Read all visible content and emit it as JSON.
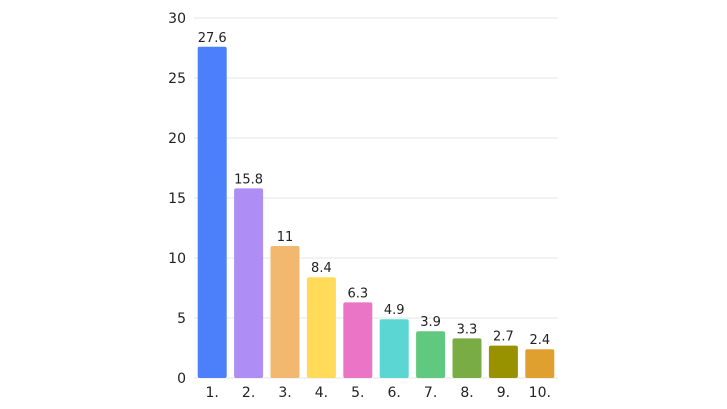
{
  "chart_data": {
    "type": "bar",
    "title": "",
    "xlabel": "",
    "ylabel": "",
    "categories": [
      "1.",
      "2.",
      "3.",
      "4.",
      "5.",
      "6.",
      "7.",
      "8.",
      "9.",
      "10."
    ],
    "values": [
      27.6,
      15.8,
      11,
      8.4,
      6.3,
      4.9,
      3.9,
      3.3,
      2.7,
      2.4
    ],
    "value_labels": [
      "27.6",
      "15.8",
      "11",
      "8.4",
      "6.3",
      "4.9",
      "3.9",
      "3.3",
      "2.7",
      "2.4"
    ],
    "ylim": [
      0,
      30
    ],
    "yticks": [
      0,
      5,
      10,
      15,
      20,
      25,
      30
    ],
    "ytick_labels": [
      "0",
      "5",
      "10",
      "15",
      "20",
      "25",
      "30"
    ],
    "grid": true,
    "legend": "none",
    "colors": [
      "#4c7ffa",
      "#ae8ef5",
      "#f2b870",
      "#ffdb59",
      "#ea75c6",
      "#5cd6d3",
      "#60c97f",
      "#7aac46",
      "#999200",
      "#e0a030"
    ]
  }
}
